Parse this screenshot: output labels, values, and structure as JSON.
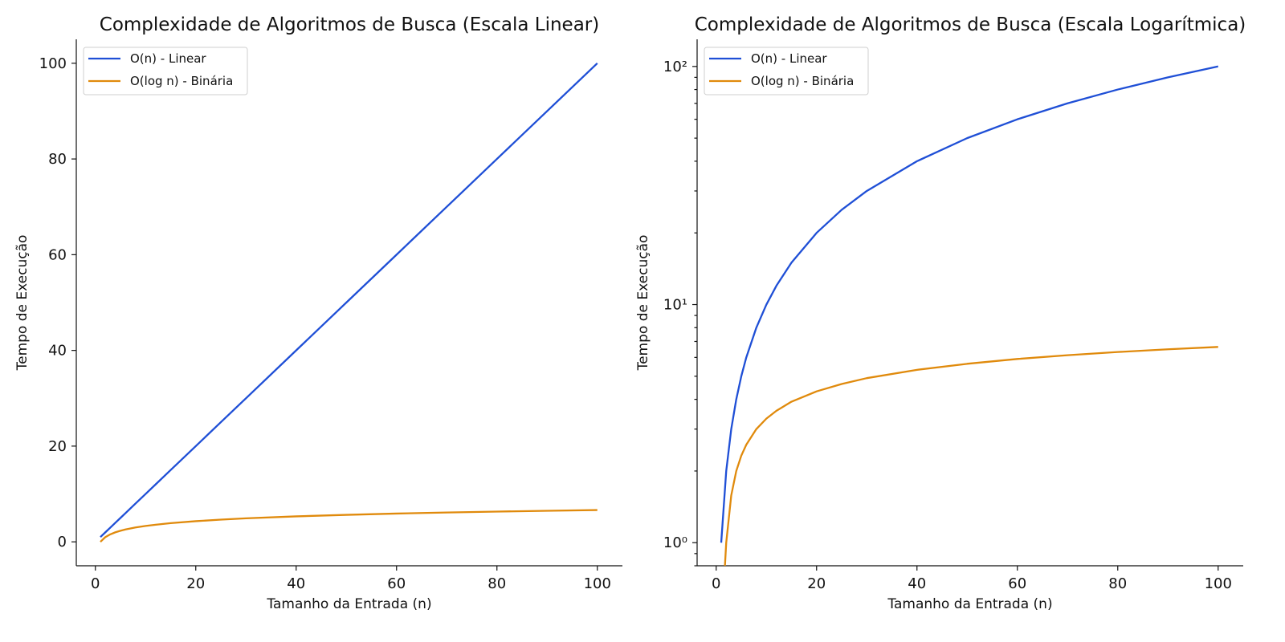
{
  "chart_data": [
    {
      "type": "line",
      "title": "Complexidade de Algoritmos de Busca (Escala Linear)",
      "xlabel": "Tamanho da Entrada (n)",
      "ylabel": "Tempo de Execução",
      "xlim": [
        -3.8,
        105
      ],
      "ylim": [
        -5,
        105
      ],
      "xscale": "linear",
      "yscale": "linear",
      "xticks": [
        0,
        20,
        40,
        60,
        80,
        100
      ],
      "xtick_labels": [
        "0",
        "20",
        "40",
        "60",
        "80",
        "100"
      ],
      "yticks": [
        0,
        20,
        40,
        60,
        80,
        100
      ],
      "ytick_labels": [
        "0",
        "20",
        "40",
        "60",
        "80",
        "100"
      ],
      "grid": false,
      "legend_position": "top-left",
      "series": [
        {
          "name": "O(n) - Linear",
          "color": "#1f4fd6",
          "x": [
            1,
            2,
            3,
            4,
            5,
            6,
            8,
            10,
            12,
            15,
            20,
            25,
            30,
            40,
            50,
            60,
            70,
            80,
            90,
            100
          ],
          "y": [
            1,
            2,
            3,
            4,
            5,
            6,
            8,
            10,
            12,
            15,
            20,
            25,
            30,
            40,
            50,
            60,
            70,
            80,
            90,
            100
          ]
        },
        {
          "name": "O(log n) - Binária",
          "color": "#e08a0c",
          "x": [
            1,
            2,
            3,
            4,
            5,
            6,
            8,
            10,
            12,
            15,
            20,
            25,
            30,
            40,
            50,
            60,
            70,
            80,
            90,
            100
          ],
          "y": [
            0,
            1,
            1.58,
            2,
            2.32,
            2.58,
            3,
            3.32,
            3.58,
            3.91,
            4.32,
            4.64,
            4.91,
            5.32,
            5.64,
            5.91,
            6.13,
            6.32,
            6.49,
            6.64
          ]
        }
      ]
    },
    {
      "type": "line",
      "title": "Complexidade de Algoritmos de Busca (Escala Logarítmica)",
      "xlabel": "Tamanho da Entrada (n)",
      "ylabel": "Tempo de Execução",
      "xlim": [
        -3.8,
        105
      ],
      "ylim": [
        0.8,
        130
      ],
      "xscale": "linear",
      "yscale": "log",
      "xticks": [
        0,
        20,
        40,
        60,
        80,
        100
      ],
      "xtick_labels": [
        "0",
        "20",
        "40",
        "60",
        "80",
        "100"
      ],
      "yticks": [
        1,
        10,
        100
      ],
      "ytick_labels": [
        "10⁰",
        "10¹",
        "10²"
      ],
      "grid": false,
      "legend_position": "top-left",
      "series": [
        {
          "name": "O(n) - Linear",
          "color": "#1f4fd6",
          "x": [
            1,
            2,
            3,
            4,
            5,
            6,
            8,
            10,
            12,
            15,
            20,
            25,
            30,
            40,
            50,
            60,
            70,
            80,
            90,
            100
          ],
          "y": [
            1,
            2,
            3,
            4,
            5,
            6,
            8,
            10,
            12,
            15,
            20,
            25,
            30,
            40,
            50,
            60,
            70,
            80,
            90,
            100
          ]
        },
        {
          "name": "O(log n) - Binária",
          "color": "#e08a0c",
          "x": [
            1.74,
            2,
            3,
            4,
            5,
            6,
            8,
            10,
            12,
            15,
            20,
            25,
            30,
            40,
            50,
            60,
            70,
            80,
            90,
            100
          ],
          "y": [
            0.8,
            1,
            1.58,
            2,
            2.32,
            2.58,
            3,
            3.32,
            3.58,
            3.91,
            4.32,
            4.64,
            4.91,
            5.32,
            5.64,
            5.91,
            6.13,
            6.32,
            6.49,
            6.64
          ]
        }
      ]
    }
  ]
}
